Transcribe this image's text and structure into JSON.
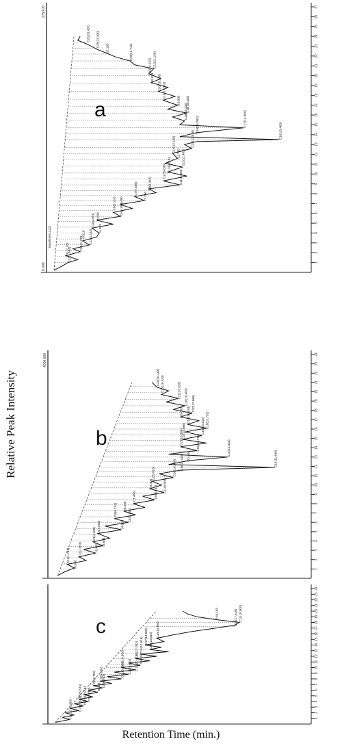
{
  "figure": {
    "ylabel": "Relative Peak Intensity",
    "xlabel": "Retention Time (min.)"
  },
  "chart_data": [
    {
      "type": "line",
      "panel": "a",
      "xlabel": "",
      "ylabel": "",
      "xlim": [
        0,
        27
      ],
      "x_ticks": [
        1,
        2,
        3,
        4,
        5,
        6,
        7,
        8,
        9,
        10,
        11,
        12,
        13,
        14,
        15,
        16,
        17,
        18,
        19,
        20,
        21,
        22,
        23,
        24,
        25,
        26,
        27
      ],
      "series": [
        {
          "values": [
            [
              0.2,
              0.02
            ],
            [
              0.6,
              0.05
            ],
            [
              1.0,
              0.08
            ],
            [
              1.3,
              0.12
            ],
            [
              1.7,
              0.07
            ],
            [
              2.1,
              0.13
            ],
            [
              2.4,
              0.1
            ],
            [
              2.8,
              0.17
            ],
            [
              3.2,
              0.14
            ],
            [
              3.6,
              0.2
            ],
            [
              4.0,
              0.21
            ],
            [
              4.5,
              0.18
            ],
            [
              4.9,
              0.27
            ],
            [
              5.3,
              0.2
            ],
            [
              5.7,
              0.3
            ],
            [
              6.1,
              0.27
            ],
            [
              6.5,
              0.35
            ],
            [
              6.9,
              0.3
            ],
            [
              7.3,
              0.4
            ],
            [
              7.7,
              0.36
            ],
            [
              8.1,
              0.45
            ],
            [
              8.5,
              0.42
            ],
            [
              8.9,
              0.55
            ],
            [
              9.3,
              0.48
            ],
            [
              9.8,
              0.58
            ],
            [
              10.2,
              0.5
            ],
            [
              10.7,
              0.56
            ],
            [
              11.1,
              0.49
            ],
            [
              11.6,
              0.54
            ],
            [
              12.1,
              0.52
            ],
            [
              12.6,
              0.6
            ],
            [
              13.0,
              0.57
            ],
            [
              13.3,
              0.62
            ],
            [
              13.5,
              0.97
            ],
            [
              13.8,
              0.55
            ],
            [
              14.2,
              0.62
            ],
            [
              14.7,
              0.82
            ],
            [
              15.0,
              0.55
            ],
            [
              15.4,
              0.57
            ],
            [
              15.8,
              0.52
            ],
            [
              16.2,
              0.58
            ],
            [
              16.6,
              0.5
            ],
            [
              17.0,
              0.54
            ],
            [
              17.5,
              0.48
            ],
            [
              17.9,
              0.53
            ],
            [
              18.4,
              0.46
            ],
            [
              18.8,
              0.5
            ],
            [
              19.3,
              0.43
            ],
            [
              19.7,
              0.47
            ],
            [
              20.2,
              0.42
            ],
            [
              20.7,
              0.44
            ],
            [
              21.1,
              0.36
            ],
            [
              21.5,
              0.34
            ],
            [
              21.9,
              0.28
            ],
            [
              22.3,
              0.24
            ],
            [
              22.7,
              0.2
            ],
            [
              23.2,
              0.16
            ],
            [
              23.6,
              0.12
            ],
            [
              24.0,
              0.13
            ]
          ]
        }
      ],
      "peak_labels": [
        {
          "rt": 1.0,
          "label": "C12(1.604)"
        },
        {
          "rt": 1.6,
          "label": "C11(2.10)"
        },
        {
          "rt": 2.2,
          "label": "C21(1.733)"
        },
        {
          "rt": 2.8,
          "label": "C22(3.153)"
        },
        {
          "rt": 3.4,
          "label": "r3.118"
        },
        {
          "rt": 4.0,
          "label": "r4.303"
        },
        {
          "rt": 4.6,
          "label": "C4(4.683)"
        },
        {
          "rt": 5.2,
          "label": "r4.800"
        },
        {
          "rt": 5.7,
          "label": "C5(5.183)"
        },
        {
          "rt": 6.3,
          "label": "C6(6.116)"
        },
        {
          "rt": 6.8,
          "label": "r6.490"
        },
        {
          "rt": 7.3,
          "label": "r7.390"
        },
        {
          "rt": 7.8,
          "label": "C7(7.466)"
        },
        {
          "rt": 8.3,
          "label": "C8(8.063)"
        },
        {
          "rt": 8.9,
          "label": "C11(8.063)"
        },
        {
          "rt": 9.5,
          "label": "C12(9.030)"
        },
        {
          "rt": 10.1,
          "label": "C13(9.316)"
        },
        {
          "rt": 10.8,
          "label": "C11(11.483)"
        },
        {
          "rt": 11.5,
          "label": "r11.760"
        },
        {
          "rt": 12.1,
          "label": "C14(12.100)"
        },
        {
          "rt": 12.7,
          "label": "C15(12.816)"
        },
        {
          "rt": 13.5,
          "label": "C16(13.463)"
        },
        {
          "rt": 14.7,
          "label": "C17(14.800)"
        },
        {
          "rt": 14.1,
          "label": "C16(14.083)"
        },
        {
          "rt": 15.5,
          "label": "C18(15.333)"
        },
        {
          "rt": 16.2,
          "label": "C18(16.483)"
        },
        {
          "rt": 16.9,
          "label": "r16.883"
        },
        {
          "rt": 17.6,
          "label": "C19(17.633)"
        },
        {
          "rt": 18.4,
          "label": "C20(18.366)"
        },
        {
          "rt": 19.2,
          "label": "r19.083"
        },
        {
          "rt": 20.0,
          "label": "C20(20.233)"
        },
        {
          "rt": 20.7,
          "label": "C22(21.100)"
        },
        {
          "rt": 21.5,
          "label": "C23(21.716)"
        },
        {
          "rt": 22.2,
          "label": "r22.133"
        },
        {
          "rt": 22.8,
          "label": "C25(23.300)"
        },
        {
          "rt": 23.4,
          "label": "C26(23.432)"
        }
      ],
      "axis_top_label": "2750.00",
      "axis_bottom_label": "0.000",
      "left_axis_label": "Baseline(0.422)"
    },
    {
      "type": "line",
      "panel": "b",
      "xlabel": "",
      "ylabel": "",
      "xlim": [
        0,
        24
      ],
      "x_ticks": [
        1,
        2,
        3,
        4,
        5,
        6,
        7,
        8,
        9,
        10,
        11,
        12,
        13,
        14,
        15,
        16,
        17,
        18,
        19,
        20,
        21,
        22,
        23,
        24
      ],
      "series": [
        {
          "values": [
            [
              0.3,
              0.03
            ],
            [
              0.7,
              0.06
            ],
            [
              1.1,
              0.1
            ],
            [
              1.5,
              0.07
            ],
            [
              1.9,
              0.15
            ],
            [
              2.3,
              0.12
            ],
            [
              2.7,
              0.19
            ],
            [
              3.1,
              0.14
            ],
            [
              3.5,
              0.22
            ],
            [
              3.9,
              0.18
            ],
            [
              4.3,
              0.25
            ],
            [
              4.8,
              0.2
            ],
            [
              5.2,
              0.3
            ],
            [
              5.6,
              0.23
            ],
            [
              6.0,
              0.33
            ],
            [
              6.4,
              0.27
            ],
            [
              6.8,
              0.36
            ],
            [
              7.2,
              0.31
            ],
            [
              7.6,
              0.4
            ],
            [
              8.0,
              0.35
            ],
            [
              8.4,
              0.44
            ],
            [
              8.8,
              0.39
            ],
            [
              9.2,
              0.48
            ],
            [
              9.6,
              0.42
            ],
            [
              10.0,
              0.47
            ],
            [
              10.4,
              0.43
            ],
            [
              10.8,
              0.52
            ],
            [
              11.2,
              0.46
            ],
            [
              11.6,
              0.55
            ],
            [
              11.9,
              0.95
            ],
            [
              12.2,
              0.5
            ],
            [
              12.6,
              0.58
            ],
            [
              13.0,
              0.75
            ],
            [
              13.3,
              0.5
            ],
            [
              13.7,
              0.62
            ],
            [
              14.1,
              0.55
            ],
            [
              14.5,
              0.66
            ],
            [
              14.9,
              0.56
            ],
            [
              15.3,
              0.64
            ],
            [
              15.7,
              0.57
            ],
            [
              16.1,
              0.66
            ],
            [
              16.5,
              0.58
            ],
            [
              16.9,
              0.63
            ],
            [
              17.3,
              0.55
            ],
            [
              17.7,
              0.6
            ],
            [
              18.1,
              0.52
            ],
            [
              18.5,
              0.57
            ],
            [
              18.9,
              0.49
            ],
            [
              19.3,
              0.54
            ],
            [
              19.7,
              0.47
            ],
            [
              20.1,
              0.5
            ],
            [
              20.5,
              0.45
            ],
            [
              21.0,
              0.43
            ]
          ]
        }
      ],
      "peak_labels": [
        {
          "rt": 1.0,
          "label": "r0.950"
        },
        {
          "rt": 1.6,
          "label": "C11(1.733)"
        },
        {
          "rt": 2.2,
          "label": "C22(2.583)"
        },
        {
          "rt": 2.8,
          "label": "r3.450"
        },
        {
          "rt": 3.4,
          "label": "r3.683"
        },
        {
          "rt": 4.0,
          "label": "C4(4.100)"
        },
        {
          "rt": 4.7,
          "label": "C4(4.683)"
        },
        {
          "rt": 5.3,
          "label": "r4.883"
        },
        {
          "rt": 6.0,
          "label": "C5(5.733)"
        },
        {
          "rt": 6.6,
          "label": "C6(6.233)"
        },
        {
          "rt": 7.3,
          "label": "r6.500"
        },
        {
          "rt": 7.9,
          "label": "C7(7.466)"
        },
        {
          "rt": 8.5,
          "label": "C8(8.283)"
        },
        {
          "rt": 9.1,
          "label": "C11(8.800)"
        },
        {
          "rt": 9.7,
          "label": "r9.400"
        },
        {
          "rt": 10.3,
          "label": "C12(9.816)"
        },
        {
          "rt": 10.9,
          "label": "C10(10.333)"
        },
        {
          "rt": 11.5,
          "label": "C16(11.416)"
        },
        {
          "rt": 11.9,
          "label": "C14(11.666)"
        },
        {
          "rt": 12.5,
          "label": "r12.400"
        },
        {
          "rt": 13.0,
          "label": "C15(12.833)"
        },
        {
          "rt": 13.6,
          "label": "C16(13.716)"
        },
        {
          "rt": 14.2,
          "label": "C15(13.366)"
        },
        {
          "rt": 14.8,
          "label": "C17(14.566)"
        },
        {
          "rt": 15.4,
          "label": "C18(15.416)"
        },
        {
          "rt": 16.0,
          "label": "C18(15.733)"
        },
        {
          "rt": 16.6,
          "label": "C19(16.183)"
        },
        {
          "rt": 17.2,
          "label": "r16.833"
        },
        {
          "rt": 17.8,
          "label": "C20(17.666)"
        },
        {
          "rt": 18.5,
          "label": "C20(18.483)"
        },
        {
          "rt": 19.2,
          "label": "C21(19.333)"
        },
        {
          "rt": 19.9,
          "label": "C22(19.433)"
        },
        {
          "rt": 20.6,
          "label": "C23(20.183)"
        }
      ],
      "axis_top_label": "4000.000"
    },
    {
      "type": "line",
      "panel": "c",
      "xlabel": "",
      "ylabel": "",
      "xlim": [
        0,
        24
      ],
      "x_ticks": [
        1,
        2,
        3,
        4,
        5,
        6,
        7,
        8,
        9,
        10,
        11,
        12,
        13,
        14,
        15,
        16,
        17,
        18,
        19,
        20,
        21,
        22,
        23,
        24
      ],
      "series": [
        {
          "values": [
            [
              0.3,
              0.02
            ],
            [
              0.8,
              0.08
            ],
            [
              1.2,
              0.05
            ],
            [
              1.6,
              0.1
            ],
            [
              2.0,
              0.06
            ],
            [
              2.4,
              0.12
            ],
            [
              2.8,
              0.08
            ],
            [
              3.2,
              0.14
            ],
            [
              3.6,
              0.1
            ],
            [
              4.0,
              0.16
            ],
            [
              4.4,
              0.12
            ],
            [
              4.8,
              0.18
            ],
            [
              5.2,
              0.14
            ],
            [
              5.6,
              0.2
            ],
            [
              6.0,
              0.16
            ],
            [
              6.4,
              0.22
            ],
            [
              6.8,
              0.18
            ],
            [
              7.2,
              0.26
            ],
            [
              7.6,
              0.21
            ],
            [
              8.0,
              0.3
            ],
            [
              8.4,
              0.24
            ],
            [
              8.8,
              0.33
            ],
            [
              9.2,
              0.27
            ],
            [
              9.6,
              0.36
            ],
            [
              10.0,
              0.3
            ],
            [
              10.4,
              0.38
            ],
            [
              10.8,
              0.33
            ],
            [
              11.2,
              0.42
            ],
            [
              11.6,
              0.36
            ],
            [
              12.0,
              0.45
            ],
            [
              12.4,
              0.38
            ],
            [
              12.8,
              0.5
            ],
            [
              13.2,
              0.42
            ],
            [
              13.6,
              0.47
            ],
            [
              14.0,
              0.4
            ],
            [
              14.6,
              0.48
            ],
            [
              15.2,
              0.45
            ],
            [
              15.8,
              0.52
            ],
            [
              16.4,
              0.6
            ],
            [
              17.0,
              0.7
            ],
            [
              17.5,
              0.78
            ],
            [
              18.0,
              0.8
            ],
            [
              18.5,
              0.7
            ],
            [
              19.0,
              0.62
            ],
            [
              19.5,
              0.58
            ],
            [
              20.0,
              0.56
            ]
          ]
        }
      ],
      "peak_labels": [
        {
          "rt": 1.0,
          "label": "r1.133"
        },
        {
          "rt": 2.2,
          "label": "C22(2.583)"
        },
        {
          "rt": 2.8,
          "label": "r3.383"
        },
        {
          "rt": 3.4,
          "label": "r4.133"
        },
        {
          "rt": 4.0,
          "label": "C4(4.700)"
        },
        {
          "rt": 4.6,
          "label": "C5(5.633)"
        },
        {
          "rt": 5.2,
          "label": "r5.583"
        },
        {
          "rt": 5.8,
          "label": "r6.116"
        },
        {
          "rt": 6.4,
          "label": "C5(6.983)"
        },
        {
          "rt": 7.0,
          "label": "C5(7.750)"
        },
        {
          "rt": 7.6,
          "label": "C9(8.366)"
        },
        {
          "rt": 8.2,
          "label": "C11(8.966)"
        },
        {
          "rt": 8.8,
          "label": "C11(9.483)"
        },
        {
          "rt": 9.4,
          "label": "C12(10.416)"
        },
        {
          "rt": 10.0,
          "label": "C13(10.850)"
        },
        {
          "rt": 10.6,
          "label": "r11.916"
        },
        {
          "rt": 11.6,
          "label": "C14(12.083)"
        },
        {
          "rt": 12.4,
          "label": "C16(12.916)"
        },
        {
          "rt": 13.2,
          "label": "C16(13.583)"
        },
        {
          "rt": 14.0,
          "label": "C17(14.833)"
        },
        {
          "rt": 15.2,
          "label": "C18(15.650)"
        },
        {
          "rt": 17.3,
          "label": "C20(17.416)"
        },
        {
          "rt": 18.0,
          "label": "C21(18.000)"
        },
        {
          "rt": 18.7,
          "label": "r18.183"
        }
      ]
    }
  ]
}
